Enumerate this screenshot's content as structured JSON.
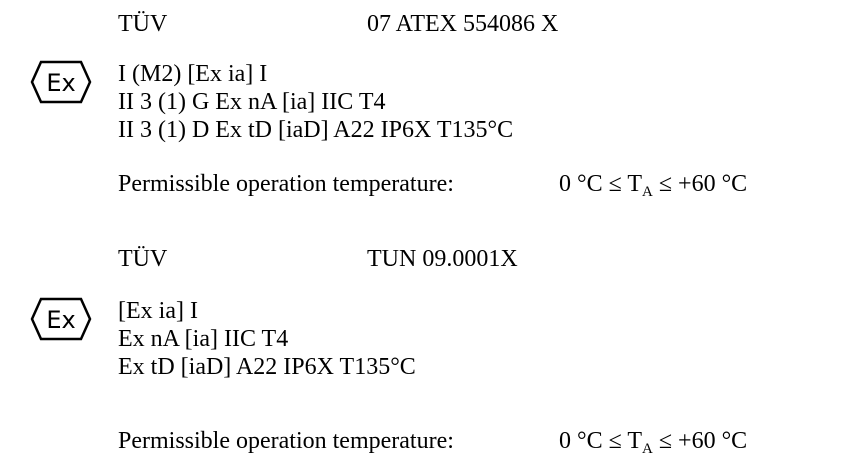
{
  "sections": [
    {
      "body": "TÜV",
      "certificate": "07 ATEX 554086 X",
      "mark": "Ex",
      "lines": [
        "I (M2) [Ex ia] I",
        "II 3 (1) G Ex nA [ia] IIC T4",
        "II 3 (1) D Ex tD [iaD] A22 IP6X T135°C"
      ],
      "temp_label": "Permissible operation temperature:",
      "temp_left": "0 °C ≤ T",
      "temp_sub": "A",
      "temp_right": " ≤ +60 °C"
    },
    {
      "body": "TÜV",
      "certificate": "TUN 09.0001X",
      "mark": "Ex",
      "lines": [
        "[Ex ia] I",
        "Ex nA [ia] IIC T4",
        "Ex tD [iaD] A22 IP6X T135°C"
      ],
      "temp_label": "Permissible operation temperature:",
      "temp_left": "0 °C ≤ T",
      "temp_sub": "A",
      "temp_right": " ≤ +60 °C"
    }
  ]
}
